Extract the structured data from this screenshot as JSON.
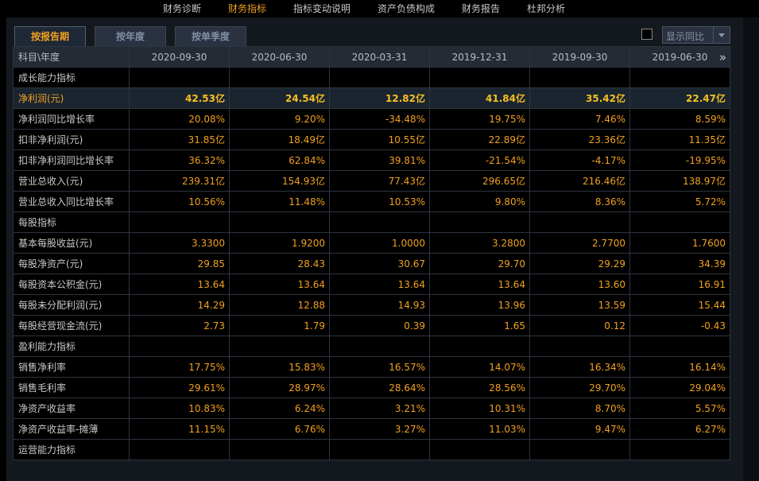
{
  "nav": [
    "财务诊断",
    "财务指标",
    "指标变动说明",
    "资产负债构成",
    "财务报告",
    "杜邦分析"
  ],
  "tabs": [
    "按报告期",
    "按年度",
    "按单季度"
  ],
  "yoy_label": "显示同比",
  "header": {
    "label": "科目\\年度",
    "dates": [
      "2020-09-30",
      "2020-06-30",
      "2020-03-31",
      "2019-12-31",
      "2019-09-30",
      "2019-06-30"
    ]
  },
  "rows": [
    {
      "label": "成长能力指标",
      "section": true
    },
    {
      "label": "净利润(元)",
      "hl": true,
      "values": [
        "42.53亿",
        "24.54亿",
        "12.82亿",
        "41.84亿",
        "35.42亿",
        "22.47亿"
      ]
    },
    {
      "label": "净利润同比增长率",
      "values": [
        "20.08%",
        "9.20%",
        "-34.48%",
        "19.75%",
        "7.46%",
        "8.59%"
      ]
    },
    {
      "label": "扣非净利润(元)",
      "values": [
        "31.85亿",
        "18.49亿",
        "10.55亿",
        "22.89亿",
        "23.36亿",
        "11.35亿"
      ]
    },
    {
      "label": "扣非净利润同比增长率",
      "values": [
        "36.32%",
        "62.84%",
        "39.81%",
        "-21.54%",
        "-4.17%",
        "-19.95%"
      ]
    },
    {
      "label": "营业总收入(元)",
      "values": [
        "239.31亿",
        "154.93亿",
        "77.43亿",
        "296.65亿",
        "216.46亿",
        "138.97亿"
      ]
    },
    {
      "label": "营业总收入同比增长率",
      "values": [
        "10.56%",
        "11.48%",
        "10.53%",
        "9.80%",
        "8.36%",
        "5.72%"
      ]
    },
    {
      "label": "每股指标",
      "section": true
    },
    {
      "label": "基本每股收益(元)",
      "values": [
        "3.3300",
        "1.9200",
        "1.0000",
        "3.2800",
        "2.7700",
        "1.7600"
      ]
    },
    {
      "label": "每股净资产(元)",
      "values": [
        "29.85",
        "28.43",
        "30.67",
        "29.70",
        "29.29",
        "34.39"
      ]
    },
    {
      "label": "每股资本公积金(元)",
      "values": [
        "13.64",
        "13.64",
        "13.64",
        "13.64",
        "13.60",
        "16.91"
      ]
    },
    {
      "label": "每股未分配利润(元)",
      "values": [
        "14.29",
        "12.88",
        "14.93",
        "13.96",
        "13.59",
        "15.44"
      ]
    },
    {
      "label": "每股经营现金流(元)",
      "values": [
        "2.73",
        "1.79",
        "0.39",
        "1.65",
        "0.12",
        "-0.43"
      ]
    },
    {
      "label": "盈利能力指标",
      "section": true
    },
    {
      "label": "销售净利率",
      "values": [
        "17.75%",
        "15.83%",
        "16.57%",
        "14.07%",
        "16.34%",
        "16.14%"
      ]
    },
    {
      "label": "销售毛利率",
      "values": [
        "29.61%",
        "28.97%",
        "28.64%",
        "28.56%",
        "29.70%",
        "29.04%"
      ]
    },
    {
      "label": "净资产收益率",
      "values": [
        "10.83%",
        "6.24%",
        "3.21%",
        "10.31%",
        "8.70%",
        "5.57%"
      ]
    },
    {
      "label": "净资产收益率-摊薄",
      "values": [
        "11.15%",
        "6.76%",
        "3.27%",
        "11.03%",
        "9.47%",
        "6.27%"
      ]
    },
    {
      "label": "运营能力指标",
      "section": true
    }
  ],
  "colors": {
    "accent": "#f0a020",
    "highlight": "#f8c020",
    "text": "#c8c8c8"
  }
}
